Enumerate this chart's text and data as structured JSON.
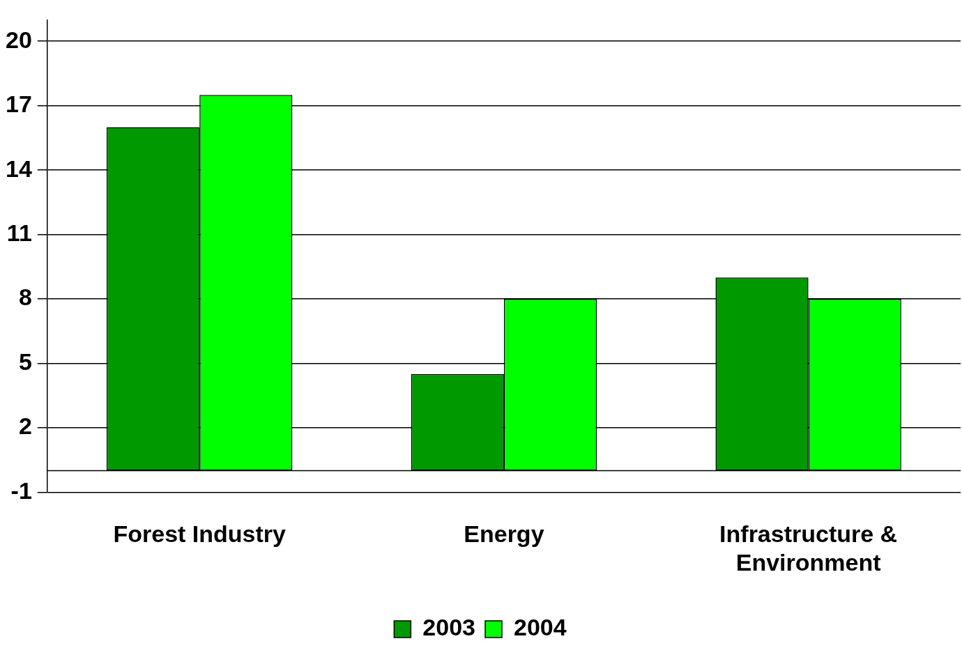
{
  "chart_data": {
    "type": "bar",
    "categories": [
      "Forest Industry",
      "Energy",
      "Infrastructure & Environment"
    ],
    "series": [
      {
        "name": "2003",
        "color": "#009900",
        "values": [
          16,
          4.5,
          9
        ]
      },
      {
        "name": "2004",
        "color": "#00ff00",
        "values": [
          17.5,
          8,
          8
        ]
      }
    ],
    "ylim": [
      -1,
      21
    ],
    "yticks": [
      -1,
      2,
      5,
      8,
      11,
      14,
      17,
      20
    ],
    "grid": "y",
    "legend": "bottom",
    "ref_lines": [
      {
        "axis": "y",
        "value": 0,
        "color": "#000000"
      }
    ]
  }
}
